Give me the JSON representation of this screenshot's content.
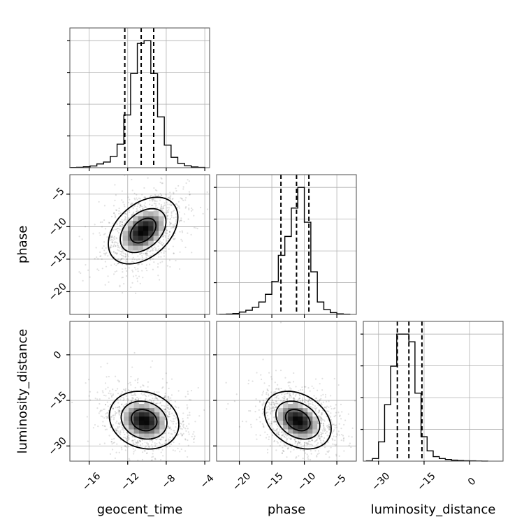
{
  "chart_data": {
    "type": "corner",
    "parameters": [
      "geocent_time",
      "phase",
      "luminosity_distance"
    ],
    "axis_labels": {
      "geocent_time": "geocent_time",
      "phase": "phase",
      "luminosity_distance": "luminosity_distance"
    },
    "ranges": {
      "geocent_time": [
        -18,
        -3.5
      ],
      "phase": [
        -23.5,
        -2
      ],
      "luminosity_distance": [
        -35,
        11
      ]
    },
    "ticks": {
      "geocent_time": {
        "values": [
          -16,
          -12,
          -8,
          -4
        ],
        "labels": [
          "−16",
          "−12",
          "−8",
          "−4"
        ]
      },
      "phase": {
        "values": [
          -20,
          -15,
          -10,
          -5
        ],
        "labels": [
          "−20",
          "−15",
          "−10",
          "−5"
        ]
      },
      "luminosity_distance": {
        "values": [
          -30,
          -15,
          0
        ],
        "labels": [
          "−30",
          "−15",
          "0"
        ]
      }
    },
    "histograms": {
      "geocent_time": {
        "bins": [
          -18,
          -17.3,
          -16.6,
          -15.9,
          -15.2,
          -14.5,
          -13.8,
          -13.1,
          -12.4,
          -11.7,
          -11.0,
          -10.3,
          -9.6,
          -8.9,
          -8.2,
          -7.5,
          -6.8,
          -6.1,
          -5.4,
          -4.7,
          -4.0
        ],
        "counts": [
          2,
          4,
          10,
          18,
          40,
          60,
          120,
          250,
          560,
          1000,
          1320,
          1350,
          1000,
          540,
          240,
          110,
          45,
          20,
          8,
          3
        ]
      },
      "phase": {
        "bins": [
          -23,
          -22,
          -21,
          -20,
          -19,
          -18,
          -17,
          -16,
          -15,
          -14,
          -13,
          -12,
          -11,
          -10,
          -9,
          -8,
          -7,
          -6,
          -5,
          -4,
          -3
        ],
        "counts": [
          2,
          6,
          16,
          40,
          70,
          120,
          210,
          340,
          560,
          1000,
          1320,
          1800,
          2150,
          1560,
          720,
          210,
          80,
          30,
          10,
          3
        ]
      },
      "luminosity_distance": {
        "bins": [
          -34,
          -32,
          -30,
          -28,
          -26,
          -24,
          -22,
          -20,
          -18,
          -16,
          -14,
          -12,
          -10,
          -8,
          -6,
          -4,
          -2,
          0,
          2,
          4,
          6
        ],
        "counts": [
          5,
          40,
          300,
          880,
          1480,
          1980,
          1980,
          1860,
          1060,
          380,
          160,
          70,
          40,
          25,
          15,
          10,
          6,
          4,
          2,
          1
        ]
      }
    },
    "quantiles": {
      "geocent_time": [
        -12.3,
        -10.6,
        -9.3
      ],
      "phase": [
        -13.6,
        -11.2,
        -9.3
      ],
      "luminosity_distance": [
        -23.8,
        -20.0,
        -15.7
      ]
    },
    "pair_densities": [
      {
        "x": "geocent_time",
        "y": "phase",
        "center": [
          -10.4,
          -10.6
        ],
        "sigma": [
          1.9,
          2.7
        ],
        "rho": 0.4
      },
      {
        "x": "geocent_time",
        "y": "luminosity_distance",
        "center": [
          -10.3,
          -21.5
        ],
        "sigma": [
          1.9,
          5.0
        ],
        "rho": -0.15
      },
      {
        "x": "phase",
        "y": "luminosity_distance",
        "center": [
          -11.0,
          -21.5
        ],
        "sigma": [
          2.7,
          5.0
        ],
        "rho": -0.3
      }
    ],
    "grid": true
  }
}
